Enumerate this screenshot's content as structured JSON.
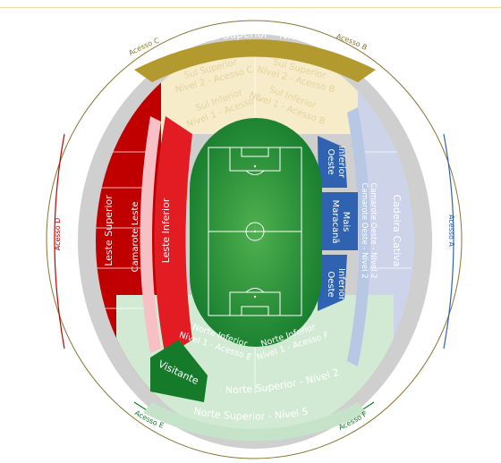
{
  "colors": {
    "sul_superior": "#b39a2e",
    "sul_light": "#f7ecc9",
    "leste_superior": "#c00000",
    "camarote_leste": "#f6c0c4",
    "leste_inferior": "#e31b23",
    "oeste": "#2f62b0",
    "camarote_oeste": "#b7c7e4",
    "cadeira_cativa": "#cdd4ea",
    "norte": "#d2ead4",
    "visitante": "#157a2a",
    "field": "#1f8c3a",
    "ring": "#cccccc"
  },
  "gates": {
    "a": "Acesso A",
    "b": "Acesso B",
    "c": "Acesso C",
    "d": "Acesso D",
    "e": "Acesso E",
    "f": "Acesso F"
  },
  "sections": {
    "sul_superior": "Sul Superior - Nível 5",
    "sul_superior_n2_c": [
      "Sul Superior",
      "Nível 2 - Acesso C"
    ],
    "sul_superior_n2_b": [
      "Sul Superior",
      "Nível 2 - Acesso B"
    ],
    "sul_inferior_c": [
      "Sul Inferior",
      "Nível 1 - Acesso C"
    ],
    "sul_inferior_b": [
      "Sul Inferior",
      "Nível 1 - Acesso B"
    ],
    "leste_superior": "Leste Superior",
    "camarote_leste": "Camarote Leste",
    "leste_inferior": "Leste Inferior",
    "oeste_inferior_top": [
      "Oeste",
      "Inferior"
    ],
    "maracana_mais": [
      "Maracanã",
      "Mais"
    ],
    "oeste_inferior_bottom": [
      "Oeste",
      "Inferior"
    ],
    "camarote_oeste": [
      "Camarote Oeste - Nível 2",
      "Camarote Oeste - Nível 2"
    ],
    "cadeira_cativa": "Cadeira Cativa",
    "norte_inferior_e": [
      "Norte Inferior",
      "Nível 1 - Acesso E"
    ],
    "norte_inferior_f": [
      "Norte Inferior",
      "Nível 1 - Acesso F"
    ],
    "visitante": "Visitante",
    "norte_superior_n2": "Norte Superior - Nível 2",
    "norte_superior_n5": "Norte Superior - Nível 5"
  }
}
